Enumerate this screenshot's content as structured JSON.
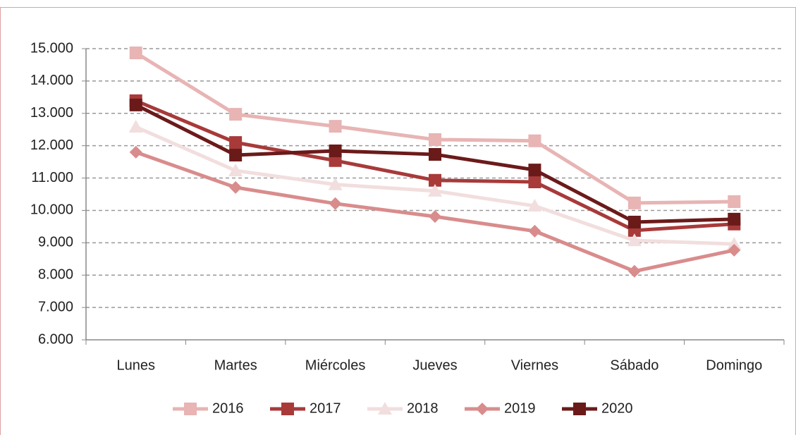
{
  "chart_data": {
    "type": "line",
    "categories": [
      "Lunes",
      "Martes",
      "Miércoles",
      "Jueves",
      "Viernes",
      "Sábado",
      "Domingo"
    ],
    "series": [
      {
        "name": "2016",
        "color": "#e8b4b4",
        "marker": "square",
        "values": [
          14870,
          12970,
          12600,
          12190,
          12150,
          10230,
          10270
        ]
      },
      {
        "name": "2017",
        "color": "#a83a3a",
        "marker": "square",
        "values": [
          13390,
          12100,
          11540,
          10930,
          10880,
          9380,
          9580
        ]
      },
      {
        "name": "2018",
        "color": "#f2dede",
        "marker": "triangle",
        "values": [
          12580,
          11230,
          10800,
          10600,
          10140,
          9070,
          8960
        ]
      },
      {
        "name": "2019",
        "color": "#d98c8c",
        "marker": "diamond",
        "values": [
          11800,
          10710,
          10210,
          9810,
          9360,
          8120,
          8770
        ]
      },
      {
        "name": "2020",
        "color": "#6b1a1a",
        "marker": "square",
        "values": [
          13260,
          11710,
          11840,
          11730,
          11250,
          9640,
          9730
        ]
      }
    ],
    "ylim": [
      6000,
      15000
    ],
    "yticks": [
      {
        "value": 6000,
        "label": "6.000"
      },
      {
        "value": 7000,
        "label": "7.000"
      },
      {
        "value": 8000,
        "label": "8.000"
      },
      {
        "value": 9000,
        "label": "9.000"
      },
      {
        "value": 10000,
        "label": "10.000"
      },
      {
        "value": 11000,
        "label": "11.000"
      },
      {
        "value": 12000,
        "label": "12.000"
      },
      {
        "value": 13000,
        "label": "13.000"
      },
      {
        "value": 14000,
        "label": "14.000"
      },
      {
        "value": 15000,
        "label": "15.000"
      }
    ],
    "grid": true,
    "legend": "bottom"
  }
}
